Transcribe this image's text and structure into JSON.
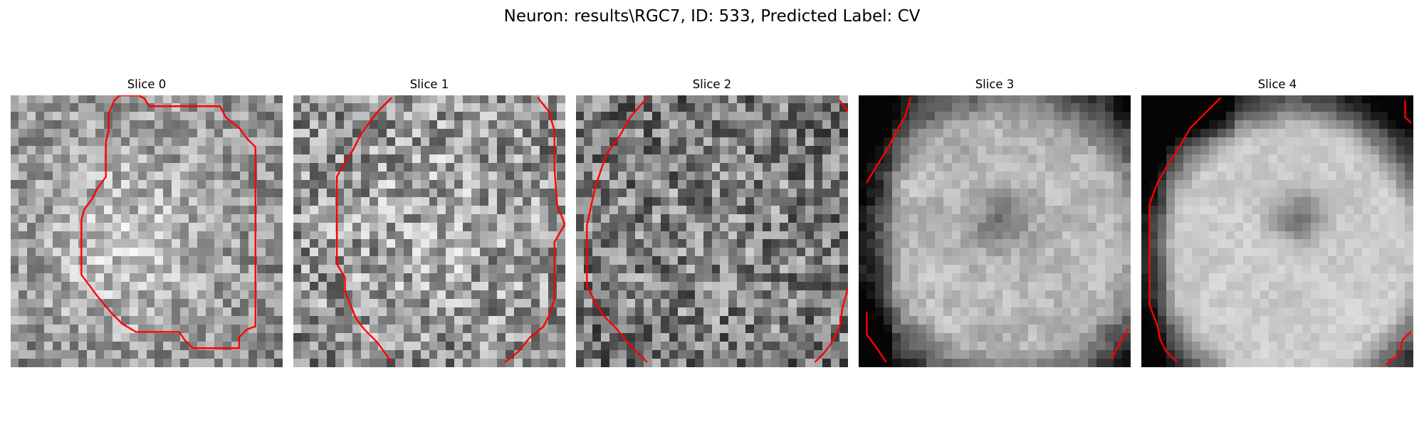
{
  "figure": {
    "title": "Neuron: results\\RGC7, ID: 533, Predicted Label: CV"
  },
  "slices": [
    {
      "title": "Slice 0"
    },
    {
      "title": "Slice 1"
    },
    {
      "title": "Slice 2"
    },
    {
      "title": "Slice 3"
    },
    {
      "title": "Slice 4"
    }
  ],
  "colors": {
    "contour": "#ff0000",
    "background": "#ffffff"
  },
  "image": {
    "colormap": "grayscale",
    "grid_cells": 32
  }
}
